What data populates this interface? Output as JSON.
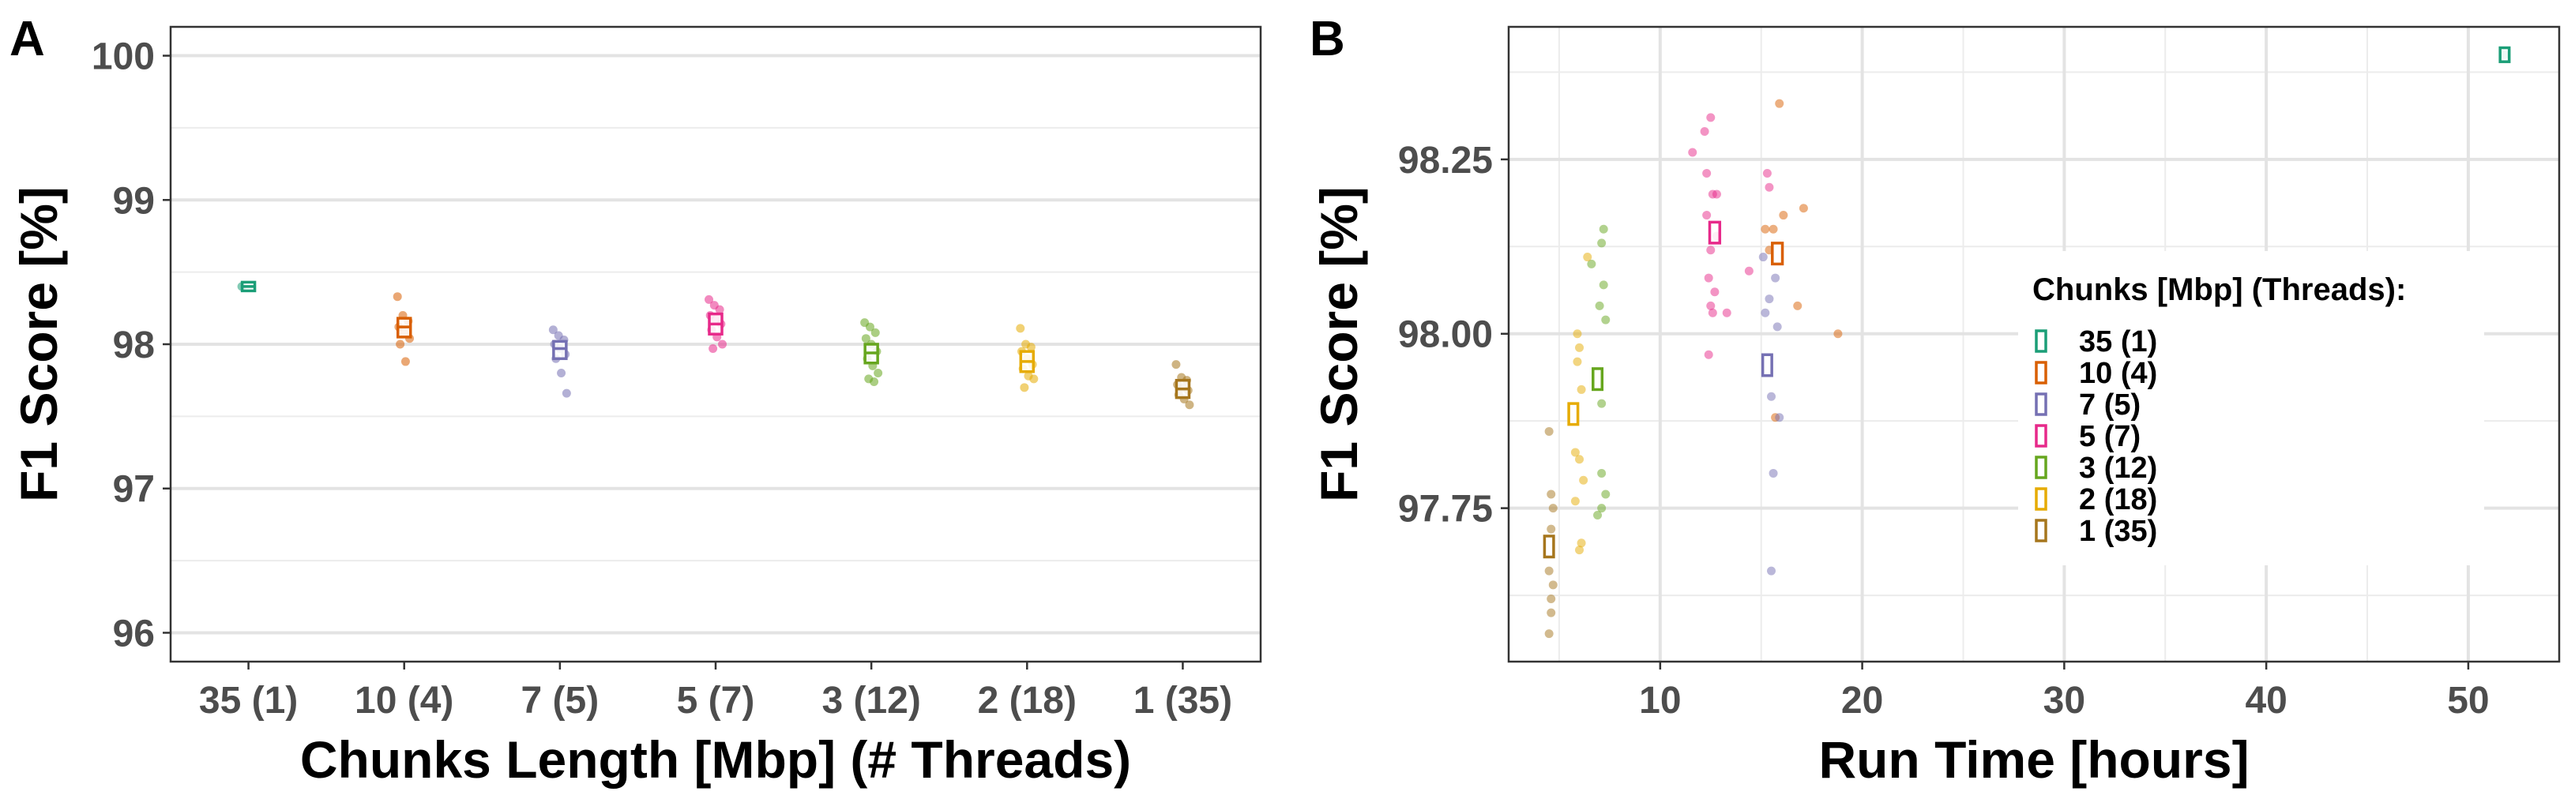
{
  "figure": {
    "panel_labels": [
      "A",
      "B"
    ]
  },
  "chart_data": [
    {
      "panel": "A",
      "type": "box",
      "title": "",
      "xlabel": "Chunks Length [Mbp] (# Threads)",
      "ylabel": "F1 Score [%]",
      "categories": [
        "35 (1)",
        "10 (4)",
        "7 (5)",
        "5 (7)",
        "3 (12)",
        "2 (18)",
        "1 (35)"
      ],
      "ylim": [
        95.8,
        100.2
      ],
      "yticks": [
        96,
        97,
        98,
        99,
        100
      ],
      "grid": true,
      "colors": [
        "#1b9e77",
        "#d95f02",
        "#7570b3",
        "#e7298a",
        "#66a61e",
        "#e6ab02",
        "#a6761d"
      ],
      "boxes": [
        {
          "q1": 98.37,
          "median": 98.4,
          "q3": 98.43
        },
        {
          "q1": 98.05,
          "median": 98.12,
          "q3": 98.18
        },
        {
          "q1": 97.9,
          "median": 97.97,
          "q3": 98.02
        },
        {
          "q1": 98.07,
          "median": 98.14,
          "q3": 98.21
        },
        {
          "q1": 97.87,
          "median": 97.94,
          "q3": 98.0
        },
        {
          "q1": 97.81,
          "median": 97.88,
          "q3": 97.95
        },
        {
          "q1": 97.63,
          "median": 97.69,
          "q3": 97.75
        }
      ],
      "points": [
        [
          98.4
        ],
        [
          98.33,
          98.2,
          98.16,
          98.12,
          98.08,
          98.04,
          98.0,
          97.88
        ],
        [
          98.1,
          98.06,
          98.03,
          98.0,
          97.97,
          97.93,
          97.9,
          97.8,
          97.66
        ],
        [
          98.31,
          98.27,
          98.24,
          98.2,
          98.17,
          98.14,
          98.1,
          98.05,
          98.0,
          97.97
        ],
        [
          98.15,
          98.12,
          98.08,
          98.04,
          98.0,
          97.95,
          97.9,
          97.85,
          97.8,
          97.76,
          97.74
        ],
        [
          98.11,
          98.0,
          97.98,
          97.95,
          97.9,
          97.86,
          97.83,
          97.78,
          97.76,
          97.7
        ],
        [
          97.86,
          97.77,
          97.75,
          97.72,
          97.7,
          97.68,
          97.65,
          97.62,
          97.58
        ]
      ]
    },
    {
      "panel": "B",
      "type": "scatter",
      "title": "",
      "xlabel": "Run Time [hours]",
      "ylabel": "F1 Score [%]",
      "xlim": [
        2.5,
        54.5
      ],
      "ylim": [
        97.53,
        98.44
      ],
      "xticks": [
        10,
        20,
        30,
        40,
        50
      ],
      "yticks": [
        97.75,
        98.0,
        98.25
      ],
      "ytick_labels": [
        "97.75",
        "98.00",
        "98.25"
      ],
      "grid": true,
      "legend_position": "right",
      "legend_title": "Chunks [Mbp] (Threads):",
      "series": [
        {
          "name": "35 (1)",
          "color": "#1b9e77",
          "box": {
            "x_center": 51.8,
            "x_width": 0.45,
            "q1": 98.39,
            "q3": 98.41
          },
          "points": [
            {
              "x": 51.8,
              "y": 98.4
            }
          ]
        },
        {
          "name": "10 (4)",
          "color": "#d95f02",
          "box": {
            "x_center": 15.8,
            "x_width": 0.5,
            "q1": 98.1,
            "q3": 98.13
          },
          "points": [
            {
              "x": 15.9,
              "y": 98.33
            },
            {
              "x": 17.1,
              "y": 98.18
            },
            {
              "x": 16.1,
              "y": 98.17
            },
            {
              "x": 15.6,
              "y": 98.15
            },
            {
              "x": 15.2,
              "y": 98.15
            },
            {
              "x": 15.4,
              "y": 98.12
            },
            {
              "x": 16.8,
              "y": 98.04
            },
            {
              "x": 18.8,
              "y": 98.0
            },
            {
              "x": 15.7,
              "y": 97.88
            }
          ]
        },
        {
          "name": "7 (5)",
          "color": "#7570b3",
          "box": {
            "x_center": 15.3,
            "x_width": 0.45,
            "q1": 97.94,
            "q3": 97.97
          },
          "points": [
            {
              "x": 15.1,
              "y": 98.11
            },
            {
              "x": 15.7,
              "y": 98.08
            },
            {
              "x": 15.4,
              "y": 98.05
            },
            {
              "x": 15.2,
              "y": 98.03
            },
            {
              "x": 15.8,
              "y": 98.01
            },
            {
              "x": 15.5,
              "y": 97.91
            },
            {
              "x": 15.9,
              "y": 97.88
            },
            {
              "x": 15.6,
              "y": 97.8
            },
            {
              "x": 15.5,
              "y": 97.66
            }
          ]
        },
        {
          "name": "5 (7)",
          "color": "#e7298a",
          "box": {
            "x_center": 12.7,
            "x_width": 0.5,
            "q1": 98.13,
            "q3": 98.16
          },
          "points": [
            {
              "x": 12.5,
              "y": 98.31
            },
            {
              "x": 12.2,
              "y": 98.29
            },
            {
              "x": 11.6,
              "y": 98.26
            },
            {
              "x": 12.3,
              "y": 98.23
            },
            {
              "x": 15.3,
              "y": 98.23
            },
            {
              "x": 12.6,
              "y": 98.2
            },
            {
              "x": 12.8,
              "y": 98.2
            },
            {
              "x": 15.4,
              "y": 98.21
            },
            {
              "x": 12.3,
              "y": 98.17
            },
            {
              "x": 12.5,
              "y": 98.12
            },
            {
              "x": 12.8,
              "y": 98.14
            },
            {
              "x": 14.4,
              "y": 98.09
            },
            {
              "x": 12.4,
              "y": 98.08
            },
            {
              "x": 12.7,
              "y": 98.06
            },
            {
              "x": 12.5,
              "y": 98.04
            },
            {
              "x": 13.3,
              "y": 98.03
            },
            {
              "x": 12.6,
              "y": 98.03
            },
            {
              "x": 12.4,
              "y": 97.97
            }
          ]
        },
        {
          "name": "3 (12)",
          "color": "#66a61e",
          "box": {
            "x_center": 6.9,
            "x_width": 0.45,
            "q1": 97.92,
            "q3": 97.95
          },
          "points": [
            {
              "x": 7.2,
              "y": 98.15
            },
            {
              "x": 7.1,
              "y": 98.13
            },
            {
              "x": 6.6,
              "y": 98.1
            },
            {
              "x": 7.2,
              "y": 98.07
            },
            {
              "x": 7.0,
              "y": 98.04
            },
            {
              "x": 7.3,
              "y": 98.02
            },
            {
              "x": 7.1,
              "y": 97.9
            },
            {
              "x": 7.1,
              "y": 97.8
            },
            {
              "x": 7.3,
              "y": 97.77
            },
            {
              "x": 7.1,
              "y": 97.75
            },
            {
              "x": 6.9,
              "y": 97.74
            }
          ]
        },
        {
          "name": "2 (18)",
          "color": "#e6ab02",
          "box": {
            "x_center": 5.7,
            "x_width": 0.45,
            "q1": 97.87,
            "q3": 97.9
          },
          "points": [
            {
              "x": 6.4,
              "y": 98.11
            },
            {
              "x": 5.9,
              "y": 98.0
            },
            {
              "x": 6.0,
              "y": 97.98
            },
            {
              "x": 5.9,
              "y": 97.96
            },
            {
              "x": 6.1,
              "y": 97.92
            },
            {
              "x": 5.8,
              "y": 97.83
            },
            {
              "x": 6.0,
              "y": 97.82
            },
            {
              "x": 6.2,
              "y": 97.79
            },
            {
              "x": 5.8,
              "y": 97.76
            },
            {
              "x": 6.1,
              "y": 97.7
            },
            {
              "x": 6.0,
              "y": 97.69
            }
          ]
        },
        {
          "name": "1 (35)",
          "color": "#a6761d",
          "box": {
            "x_center": 4.5,
            "x_width": 0.45,
            "q1": 97.68,
            "q3": 97.71
          },
          "points": [
            {
              "x": 4.5,
              "y": 97.86
            },
            {
              "x": 4.6,
              "y": 97.77
            },
            {
              "x": 4.7,
              "y": 97.75
            },
            {
              "x": 4.6,
              "y": 97.72
            },
            {
              "x": 4.5,
              "y": 97.66
            },
            {
              "x": 4.7,
              "y": 97.64
            },
            {
              "x": 4.6,
              "y": 97.62
            },
            {
              "x": 4.6,
              "y": 97.6
            },
            {
              "x": 4.5,
              "y": 97.57
            }
          ]
        }
      ]
    }
  ]
}
